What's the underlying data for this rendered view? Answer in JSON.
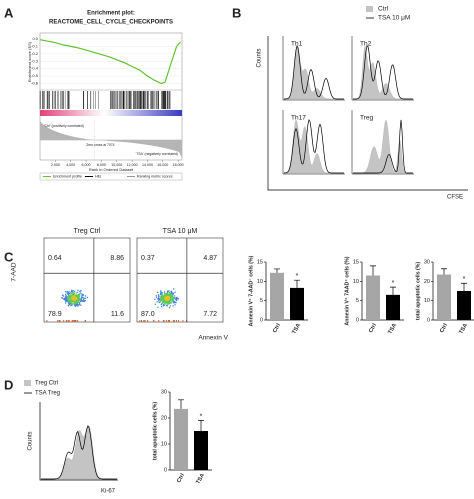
{
  "panel_labels": [
    "A",
    "B",
    "C",
    "D"
  ],
  "chart_data": [
    {
      "type": "line",
      "title": "Enrichment plot:",
      "subtitle": "REACTOME_CELL_CYCLE_CHECKPOINTS",
      "x": [
        0,
        1000,
        2000,
        3000,
        4000,
        5000,
        6000,
        7000,
        8000,
        9000,
        10000,
        11000,
        12000,
        13000,
        14000,
        15000,
        15800,
        16300,
        17000,
        17800,
        18300
      ],
      "series": [
        {
          "name": "Enrichment profile",
          "color": "#5fc42e",
          "values": [
            -0.01,
            -0.03,
            -0.05,
            -0.08,
            -0.1,
            -0.12,
            -0.15,
            -0.18,
            -0.21,
            -0.24,
            -0.28,
            -0.32,
            -0.37,
            -0.42,
            -0.5,
            -0.56,
            -0.6,
            -0.58,
            -0.35,
            -0.1,
            -0.04
          ]
        }
      ],
      "other_legend_entries": [
        {
          "name": "Hits",
          "color": "#000000"
        },
        {
          "name": "Ranking metric scores",
          "color": "#999999"
        }
      ],
      "xlabel": "Rank in Ordered Dataset",
      "ylabel": "Enrichment score (ES)",
      "annotations": [
        "'Ctrl' (positively correlated)",
        "Zero cross at 7074",
        "'TSA' (negatively correlated)"
      ],
      "xlim": [
        0,
        18500
      ],
      "ylim": [
        -0.66,
        0.04
      ],
      "xticks": [
        {
          "value": 2000,
          "label": "2,000"
        },
        {
          "value": 4000,
          "label": "4,000"
        },
        {
          "value": 6000,
          "label": "6,000"
        },
        {
          "value": 8000,
          "label": "8,000"
        },
        {
          "value": 10000,
          "label": "10,000"
        },
        {
          "value": 12000,
          "label": "12,000"
        },
        {
          "value": 14000,
          "label": "14,000"
        },
        {
          "value": 16000,
          "label": "16,000"
        },
        {
          "value": 18000,
          "label": "18,000"
        }
      ],
      "yticks": [
        {
          "value": 0,
          "label": "0.0"
        },
        -0.1,
        -0.2,
        -0.3,
        -0.4,
        -0.5,
        -0.6
      ]
    },
    {
      "type": "bar",
      "ylabel": "Annexin V⁺ 7-AAD⁻ cells (%)",
      "categories": [
        "Ctrl",
        "TSA"
      ],
      "values": [
        12.2,
        8.3
      ],
      "errors": [
        1.0,
        2.0
      ],
      "colors": [
        "#a6a6a6",
        "#000000"
      ],
      "ylim": [
        0,
        15
      ],
      "yticks": [
        0,
        5,
        10,
        15
      ],
      "annotation": "*"
    },
    {
      "type": "bar",
      "ylabel": "Annexin V⁺ 7AAD⁺ cells (%)",
      "categories": [
        "Ctrl",
        "TSA"
      ],
      "values": [
        11.5,
        6.5
      ],
      "errors": [
        2.5,
        2.0
      ],
      "colors": [
        "#a6a6a6",
        "#000000"
      ],
      "ylim": [
        0,
        15
      ],
      "yticks": [
        0,
        5,
        10,
        15
      ],
      "annotation": "*"
    },
    {
      "type": "bar",
      "ylabel": "total apoptotic cells (%)",
      "categories": [
        "Ctrl",
        "TSA"
      ],
      "values": [
        23.5,
        15
      ],
      "errors": [
        3.0,
        4.0
      ],
      "colors": [
        "#a6a6a6",
        "#000000"
      ],
      "ylim": [
        0,
        30
      ],
      "yticks": [
        0,
        10,
        20,
        30
      ],
      "annotation": "*"
    },
    {
      "type": "bar",
      "ylabel": "total apoptotic cells (%)",
      "categories": [
        "Ctrl",
        "TSA"
      ],
      "values": [
        23.5,
        15
      ],
      "errors": [
        3.5,
        4.0
      ],
      "colors": [
        "#a6a6a6",
        "#000000"
      ],
      "ylim": [
        0,
        30
      ],
      "yticks": [
        0,
        10,
        20,
        30
      ],
      "annotation": "*"
    }
  ],
  "flow_B": {
    "legend": [
      "Ctrl",
      "TSA 10 μM"
    ],
    "panels": [
      "Th1",
      "Th2",
      "Th17",
      "Treg"
    ],
    "ylabel": "Counts",
    "xlabel": "CFSE"
  },
  "flow_C": {
    "ylabel": "7-AAD",
    "xlabel": "Annexin V",
    "plots": [
      {
        "title": "Treg Ctrl",
        "quadrants": [
          "0.64",
          "8.86",
          "78.9",
          "11.6"
        ]
      },
      {
        "title": "TSA 10 μM",
        "quadrants": [
          "0.37",
          "4.87",
          "87.0",
          "7.72"
        ]
      }
    ]
  },
  "flow_D": {
    "legend": [
      "Treg Ctrl",
      "TSA Treg"
    ],
    "ylabel": "Counts",
    "xlabel": "Ki-67"
  }
}
